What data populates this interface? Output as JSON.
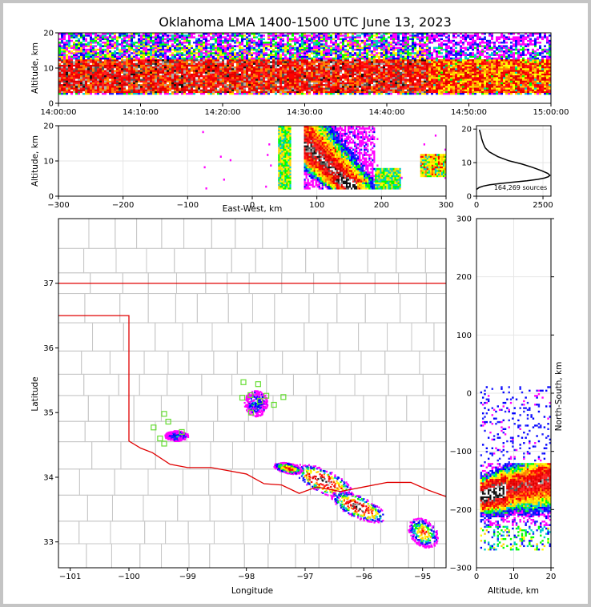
{
  "figure": {
    "title": "Oklahoma LMA 1400-1500 UTC June 13, 2023",
    "source_count_label": "164,269 sources"
  },
  "chart_data": [
    {
      "panel": "time-height",
      "type": "heatmap",
      "xlabel": "",
      "ylabel": "Altitude, km",
      "xticks": [
        "14:00:00",
        "14:10:00",
        "14:20:00",
        "14:30:00",
        "14:40:00",
        "14:50:00",
        "15:00:00"
      ],
      "yticks": [
        0,
        10,
        20
      ],
      "xlim": [
        "14:00:00",
        "15:00:00"
      ],
      "ylim": [
        0,
        20
      ],
      "density_band_km": {
        "dense_low": 3,
        "dense_high": 12,
        "sparse_high": 20
      },
      "grid": false
    },
    {
      "panel": "east-west-height",
      "type": "heatmap",
      "xlabel": "East-West, km",
      "ylabel": "Altitude, km",
      "xticks": [
        -300,
        -200,
        -100,
        0,
        100,
        200,
        300
      ],
      "yticks": [
        0,
        10,
        20
      ],
      "xlim": [
        -300,
        300
      ],
      "ylim": [
        0,
        20
      ],
      "grid": true
    },
    {
      "panel": "altitude-histogram",
      "type": "line",
      "xlabel": "",
      "ylabel": "",
      "xticks": [
        0,
        2500
      ],
      "yticks": [
        0,
        10,
        20
      ],
      "xlim": [
        0,
        2800
      ],
      "ylim": [
        0,
        21
      ],
      "x": [
        0,
        100,
        250,
        500,
        900,
        1400,
        1900,
        2300,
        2550,
        2700,
        2760,
        2680,
        2450,
        2100,
        1700,
        1200,
        800,
        480,
        330,
        260,
        200,
        160,
        110
      ],
      "y": [
        2.0,
        2.6,
        3.0,
        3.4,
        3.8,
        4.2,
        4.6,
        5.0,
        5.4,
        5.8,
        6.2,
        6.8,
        7.6,
        8.6,
        9.6,
        10.6,
        11.8,
        13.2,
        14.4,
        15.6,
        17.0,
        18.4,
        19.8
      ]
    },
    {
      "panel": "plan-view",
      "type": "scatter",
      "xlabel": "Longitude",
      "ylabel": "Latitude",
      "xticks": [
        -101,
        -100,
        -99,
        -98,
        -97,
        -96,
        -95
      ],
      "yticks": [
        33,
        34,
        35,
        36,
        37
      ],
      "xlim": [
        -101.2,
        -94.6
      ],
      "ylim": [
        32.6,
        38.0
      ],
      "stations": {
        "lon": [
          -98.05,
          -97.8,
          -98.07,
          -97.93,
          -97.77,
          -97.66,
          -97.53,
          -97.37,
          -97.92,
          -99.4,
          -99.33,
          -99.58,
          -99.47,
          -99.4,
          -99.1
        ],
        "lat": [
          35.47,
          35.44,
          35.23,
          35.27,
          35.18,
          35.26,
          35.12,
          35.24,
          35.0,
          34.98,
          34.86,
          34.77,
          34.6,
          34.52,
          34.7
        ]
      },
      "grid": false
    },
    {
      "panel": "north-south-height",
      "type": "heatmap",
      "xlabel": "Altitude, km",
      "ylabel": "North-South, km",
      "xticks": [
        0,
        10,
        20
      ],
      "yticks": [
        -300,
        -200,
        -100,
        0,
        100,
        200,
        300
      ],
      "xlim": [
        0,
        20
      ],
      "ylim": [
        -300,
        300
      ],
      "grid": true
    }
  ]
}
